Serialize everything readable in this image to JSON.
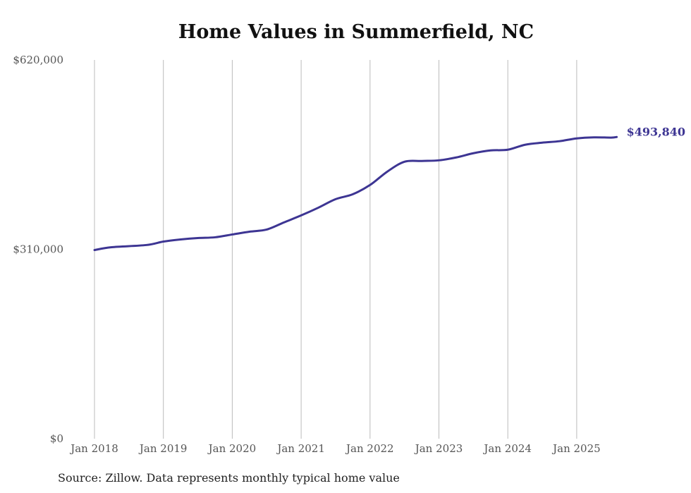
{
  "chart_data": {
    "type": "line",
    "title": "Home Values in Summerfield, NC",
    "source": "Source: Zillow. Data represents monthly typical home value",
    "xlabel": "",
    "ylabel": "",
    "ylim": [
      0,
      620000
    ],
    "y_ticks": [
      0,
      310000,
      620000
    ],
    "y_tick_labels": [
      "$0",
      "$310,000",
      "$620,000"
    ],
    "x_ticks": [
      2018,
      2019,
      2020,
      2021,
      2022,
      2023,
      2024,
      2025
    ],
    "x_tick_labels": [
      "Jan 2018",
      "Jan 2019",
      "Jan 2020",
      "Jan 2021",
      "Jan 2022",
      "Jan 2023",
      "Jan 2024",
      "Jan 2025"
    ],
    "grid": "vertical",
    "line_color": "#3d3593",
    "end_label": "$493,840",
    "series": [
      {
        "name": "Typical home value",
        "x": [
          2018.0,
          2018.25,
          2018.75,
          2019.0,
          2019.25,
          2019.5,
          2019.75,
          2020.0,
          2020.25,
          2020.5,
          2020.75,
          2021.0,
          2021.25,
          2021.5,
          2021.75,
          2022.0,
          2022.25,
          2022.5,
          2022.75,
          2023.0,
          2023.25,
          2023.5,
          2023.75,
          2024.0,
          2024.25,
          2024.5,
          2024.75,
          2025.0,
          2025.25,
          2025.5,
          2025.58
        ],
        "values": [
          308800,
          313500,
          317000,
          322700,
          326200,
          328500,
          329700,
          334300,
          338900,
          342400,
          354000,
          365500,
          378200,
          392100,
          400200,
          415300,
          437200,
          453400,
          454600,
          455700,
          460400,
          467300,
          471900,
          473100,
          481200,
          484600,
          487000,
          491600,
          493300,
          492900,
          493840
        ]
      }
    ]
  }
}
